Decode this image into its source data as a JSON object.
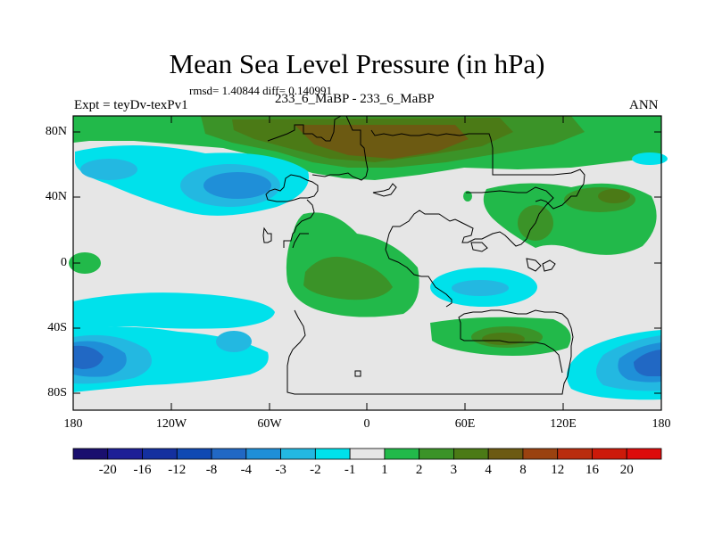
{
  "title": "Mean Sea Level Pressure (in hPa)",
  "stats": "rmsd= 1.40844  diff= 0.140991",
  "expt": "Expt = teyDv-texPv1",
  "case": "233_6_MaBP - 233_6_MaBP",
  "season": "ANN",
  "lat_labels": [
    "80N",
    "40N",
    "0",
    "40S",
    "80S"
  ],
  "lon_labels": [
    "180",
    "120W",
    "60W",
    "0",
    "60E",
    "120E",
    "180"
  ],
  "colorbar": {
    "labels": [
      "-20",
      "-16",
      "-12",
      "-8",
      "-4",
      "-3",
      "-2",
      "-1",
      "1",
      "2",
      "3",
      "4",
      "8",
      "12",
      "16",
      "20"
    ],
    "colors": [
      "#1a0f6e",
      "#1d1f96",
      "#14309f",
      "#1049b3",
      "#2168c4",
      "#1f8fd8",
      "#23b8e1",
      "#00e1eb",
      "#e6e6e6",
      "#22b94a",
      "#3b9328",
      "#4b7a16",
      "#6c5a12",
      "#9a4210",
      "#b92d0e",
      "#cc1a0a",
      "#dd0c0c"
    ]
  },
  "field_colors": {
    "neutral": "#e6e6e6",
    "neg1": "#00e1eb",
    "neg2": "#23b8e1",
    "neg3": "#1f8fd8",
    "neg4": "#2168c4",
    "neg8": "#1049b3",
    "pos1": "#22b94a",
    "pos2": "#3b9328",
    "pos3": "#4b7a16",
    "pos4": "#6c5a12"
  }
}
